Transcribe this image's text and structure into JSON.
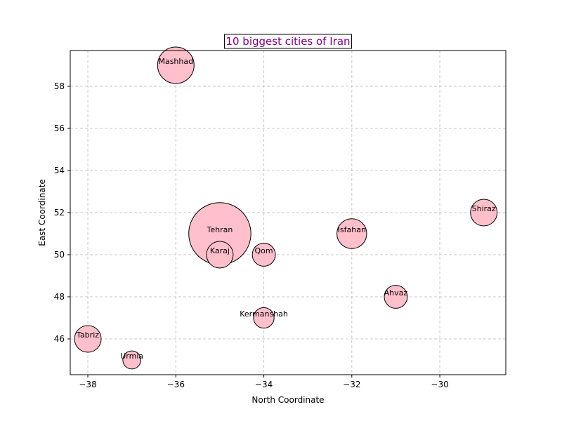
{
  "chart_data": {
    "type": "scatter",
    "title": "10 biggest cities of Iran",
    "xlabel": "North Coordinate",
    "ylabel": "East Coordinate",
    "xlim": [
      -38.4,
      -28.5
    ],
    "ylim": [
      44.3,
      59.7
    ],
    "xticks": [
      -38,
      -36,
      -34,
      -32,
      -30
    ],
    "yticks": [
      46,
      48,
      50,
      52,
      54,
      56,
      58
    ],
    "grid": true,
    "colors": {
      "marker_fill": "#ffc0cb",
      "marker_edge": "#000000",
      "title_text": "#800080",
      "title_box_edge": "#000000",
      "grid": "#c8c8c8"
    },
    "points": [
      {
        "name": "Tehran",
        "x": -35,
        "y": 51,
        "size": 8.7
      },
      {
        "name": "Mashhad",
        "x": -36,
        "y": 59,
        "size": 3.0
      },
      {
        "name": "Isfahan",
        "x": -32,
        "y": 51,
        "size": 2.0
      },
      {
        "name": "Karaj",
        "x": -35,
        "y": 50,
        "size": 1.6
      },
      {
        "name": "Shiraz",
        "x": -29,
        "y": 52,
        "size": 1.6
      },
      {
        "name": "Tabriz",
        "x": -38,
        "y": 46,
        "size": 1.6
      },
      {
        "name": "Qom",
        "x": -34,
        "y": 50,
        "size": 1.2
      },
      {
        "name": "Ahvaz",
        "x": -31,
        "y": 48,
        "size": 1.2
      },
      {
        "name": "Kermanshah",
        "x": -34,
        "y": 47,
        "size": 0.95
      },
      {
        "name": "Urmia",
        "x": -37,
        "y": 45,
        "size": 0.73
      }
    ]
  }
}
